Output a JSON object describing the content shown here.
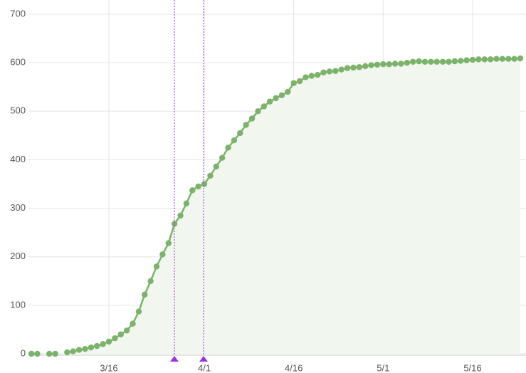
{
  "chart_data": {
    "type": "line",
    "categories": [
      null,
      null,
      null,
      null,
      null,
      null,
      null,
      null,
      null,
      null,
      null,
      null,
      null,
      "3/16",
      null,
      null,
      null,
      null,
      null,
      null,
      null,
      null,
      null,
      null,
      null,
      null,
      null,
      null,
      null,
      "4/1",
      null,
      null,
      null,
      null,
      null,
      null,
      null,
      null,
      null,
      null,
      null,
      null,
      null,
      null,
      "4/16",
      null,
      null,
      null,
      null,
      null,
      null,
      null,
      null,
      null,
      null,
      null,
      null,
      null,
      null,
      "5/1",
      null,
      null,
      null,
      null,
      null,
      null,
      null,
      null,
      null,
      null,
      null,
      null,
      null,
      null,
      "5/16",
      null,
      null,
      null,
      null,
      null,
      null,
      null,
      null
    ],
    "values": [
      0,
      0,
      null,
      0,
      0,
      null,
      3,
      5,
      8,
      10,
      13,
      16,
      20,
      25,
      32,
      40,
      48,
      62,
      87,
      122,
      150,
      180,
      205,
      228,
      268,
      285,
      310,
      337,
      345,
      350,
      367,
      386,
      404,
      425,
      440,
      455,
      472,
      485,
      500,
      510,
      520,
      527,
      533,
      540,
      558,
      562,
      570,
      573,
      575,
      580,
      582,
      583,
      586,
      589,
      590,
      591,
      593,
      595,
      596,
      597,
      597,
      598,
      598,
      600,
      602,
      603,
      602,
      602,
      602,
      602,
      602,
      603,
      604,
      605,
      606,
      607,
      607,
      607,
      608,
      608,
      608,
      608,
      609
    ],
    "color": "#7bb36a",
    "area_color": "#f1f6ee",
    "ylim": [
      0,
      700
    ],
    "yticks": [
      0,
      100,
      200,
      300,
      400,
      500,
      600,
      700
    ],
    "grid": true
  }
}
